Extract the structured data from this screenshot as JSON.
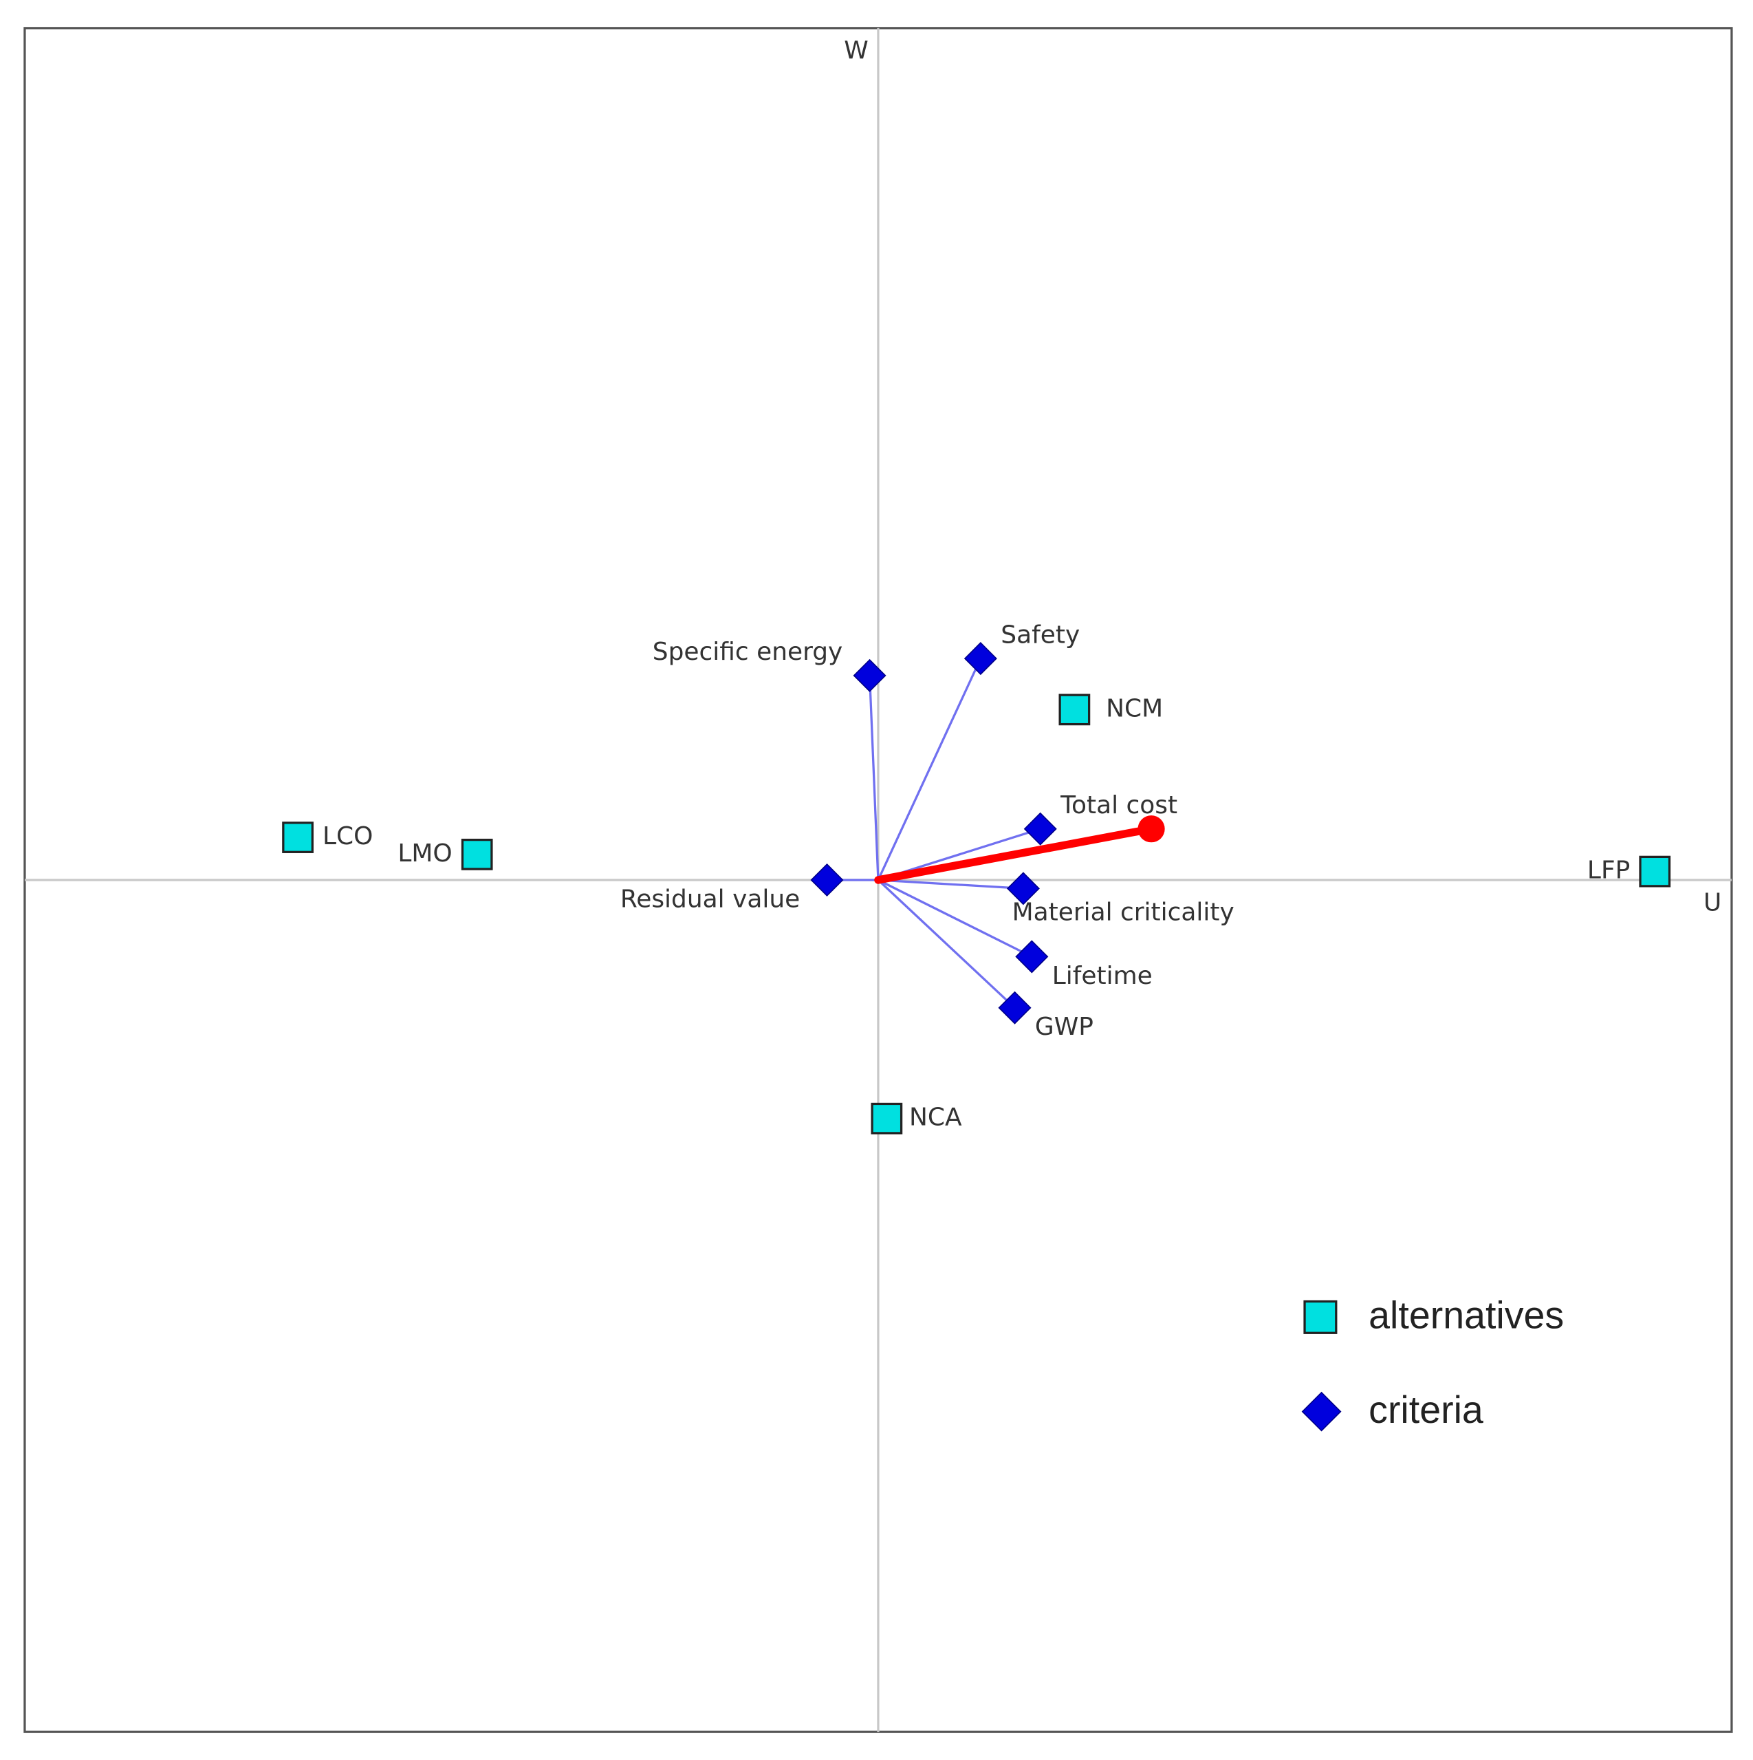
{
  "chart_data": {
    "type": "scatter",
    "x_label": "U",
    "y_label": "W",
    "xlim": [
      -1,
      1
    ],
    "ylim": [
      -1,
      1
    ],
    "series": [
      {
        "name": "alternatives",
        "color": "#00e0e0",
        "labels": [
          "LCO",
          "LMO",
          "NCM",
          "LFP",
          "NCA"
        ],
        "x": [
          -0.68,
          -0.47,
          0.23,
          0.91,
          0.01
        ],
        "values": [
          0.05,
          0.03,
          0.2,
          0.01,
          -0.28
        ]
      },
      {
        "name": "criteria",
        "color": "#0000dd",
        "labels": [
          "Specific energy",
          "Safety",
          "Total cost",
          "Material criticality",
          "Lifetime",
          "GWP",
          "Residual value"
        ],
        "x": [
          -0.01,
          0.12,
          0.19,
          0.17,
          0.18,
          0.16,
          -0.06
        ],
        "values": [
          0.24,
          0.26,
          0.06,
          -0.01,
          -0.09,
          -0.15,
          0.0
        ]
      }
    ],
    "decision_axis": {
      "x": 0.32,
      "y": 0.06,
      "color": "#ff0000"
    }
  }
}
